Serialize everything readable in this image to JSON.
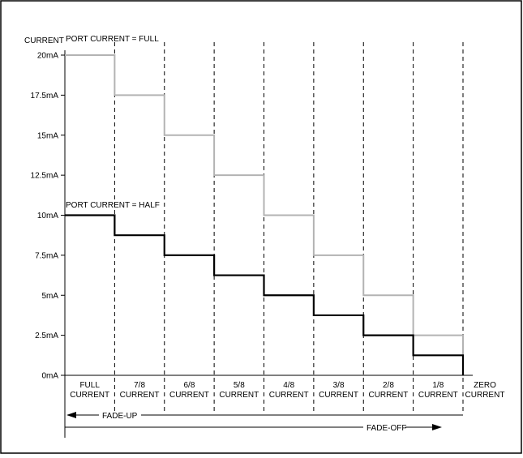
{
  "chart_data": {
    "type": "line",
    "ylabel": "CURRENT",
    "ylim": [
      0,
      20
    ],
    "yticks": [
      {
        "value": 0,
        "label": "0mA"
      },
      {
        "value": 2.5,
        "label": "2.5mA"
      },
      {
        "value": 5,
        "label": "5mA"
      },
      {
        "value": 7.5,
        "label": "7.5mA"
      },
      {
        "value": 10,
        "label": "10mA"
      },
      {
        "value": 12.5,
        "label": "12.5mA"
      },
      {
        "value": 15,
        "label": "15mA"
      },
      {
        "value": 17.5,
        "label": "17.5mA"
      },
      {
        "value": 20,
        "label": "20mA"
      }
    ],
    "categories": [
      [
        "FULL",
        "CURRENT"
      ],
      [
        "7/8",
        "CURRENT"
      ],
      [
        "6/8",
        "CURRENT"
      ],
      [
        "5/8",
        "CURRENT"
      ],
      [
        "4/8",
        "CURRENT"
      ],
      [
        "3/8",
        "CURRENT"
      ],
      [
        "2/8",
        "CURRENT"
      ],
      [
        "1/8",
        "CURRENT"
      ],
      [
        "ZERO",
        "CURRENT"
      ]
    ],
    "series": [
      {
        "name": "PORT CURRENT = FULL",
        "color": "#b3b3b3",
        "values": [
          20,
          17.5,
          15,
          12.5,
          10,
          7.5,
          5,
          2.5,
          0
        ]
      },
      {
        "name": "PORT CURRENT = HALF",
        "color": "#000000",
        "values": [
          10,
          8.75,
          7.5,
          6.25,
          5,
          3.75,
          2.5,
          1.25,
          0
        ]
      }
    ],
    "arrows": {
      "fade_up": "FADE-UP",
      "fade_off": "FADE-OFF"
    },
    "grid": "dashed vertical dividers"
  }
}
